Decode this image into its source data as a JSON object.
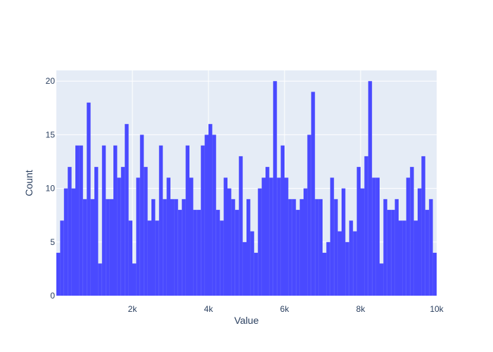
{
  "chart_data": {
    "type": "bar",
    "subtype": "histogram",
    "xlabel": "Value",
    "ylabel": "Count",
    "xlim": [
      0,
      10000
    ],
    "ylim": [
      0,
      21
    ],
    "bin_size": 100,
    "bin_start": 0,
    "bar_color": "#4444ff",
    "plot_background": "#e5ecf6",
    "grid": true,
    "x_ticks": [
      {
        "value": 2000,
        "label": "2k"
      },
      {
        "value": 4000,
        "label": "4k"
      },
      {
        "value": 6000,
        "label": "6k"
      },
      {
        "value": 8000,
        "label": "8k"
      },
      {
        "value": 10000,
        "label": "10k"
      }
    ],
    "y_ticks": [
      {
        "value": 0,
        "label": "0"
      },
      {
        "value": 5,
        "label": "5"
      },
      {
        "value": 10,
        "label": "10"
      },
      {
        "value": 15,
        "label": "15"
      },
      {
        "value": 20,
        "label": "20"
      }
    ],
    "values": [
      4,
      7,
      10,
      12,
      10,
      14,
      14,
      9,
      18,
      9,
      12,
      3,
      14,
      9,
      9,
      14,
      11,
      12,
      16,
      7,
      3,
      11,
      15,
      12,
      7,
      9,
      7,
      14,
      9,
      11,
      9,
      9,
      8,
      9,
      14,
      11,
      8,
      8,
      14,
      15,
      16,
      15,
      8,
      7,
      11,
      10,
      9,
      8,
      13,
      5,
      9,
      6,
      4,
      10,
      11,
      12,
      11,
      20,
      11,
      14,
      11,
      9,
      9,
      8,
      9,
      10,
      15,
      19,
      9,
      9,
      4,
      5,
      11,
      9,
      6,
      10,
      5,
      7,
      6,
      12,
      10,
      13,
      20,
      11,
      11,
      3,
      9,
      8,
      8,
      9,
      7,
      7,
      11,
      12,
      7,
      10,
      13,
      8,
      9,
      4
    ]
  }
}
